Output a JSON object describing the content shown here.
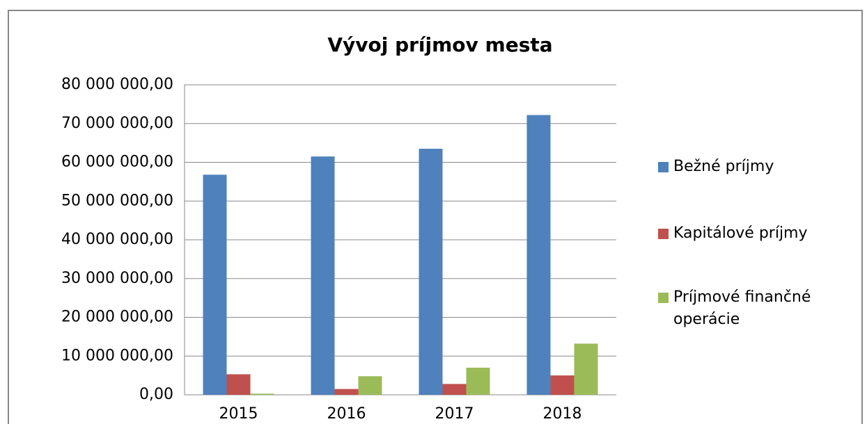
{
  "chart_data": {
    "type": "bar",
    "title": "Vývoj príjmov mesta",
    "categories": [
      "2015",
      "2016",
      "2017",
      "2018"
    ],
    "series": [
      {
        "name": "Bežné príjmy",
        "color": "#4f81bd",
        "values": [
          56800000,
          61500000,
          63500000,
          72200000
        ]
      },
      {
        "name": "Kapitálové príjmy",
        "color": "#c0504d",
        "values": [
          5300000,
          1500000,
          2800000,
          5000000
        ]
      },
      {
        "name": "Príjmové finančné operácie",
        "color": "#9bbb59",
        "values": [
          300000,
          4800000,
          7000000,
          13200000
        ]
      }
    ],
    "ylim": [
      0,
      80000000
    ],
    "yticks": [
      {
        "value": 0,
        "label": "0,00"
      },
      {
        "value": 10000000,
        "label": "10 000 000,00"
      },
      {
        "value": 20000000,
        "label": "20 000 000,00"
      },
      {
        "value": 30000000,
        "label": "30 000 000,00"
      },
      {
        "value": 40000000,
        "label": "40 000 000,00"
      },
      {
        "value": 50000000,
        "label": "50 000 000,00"
      },
      {
        "value": 60000000,
        "label": "60 000 000,00"
      },
      {
        "value": 70000000,
        "label": "70 000 000,00"
      },
      {
        "value": 80000000,
        "label": "80 000 000,00"
      }
    ],
    "grid": true,
    "legend": "right"
  }
}
